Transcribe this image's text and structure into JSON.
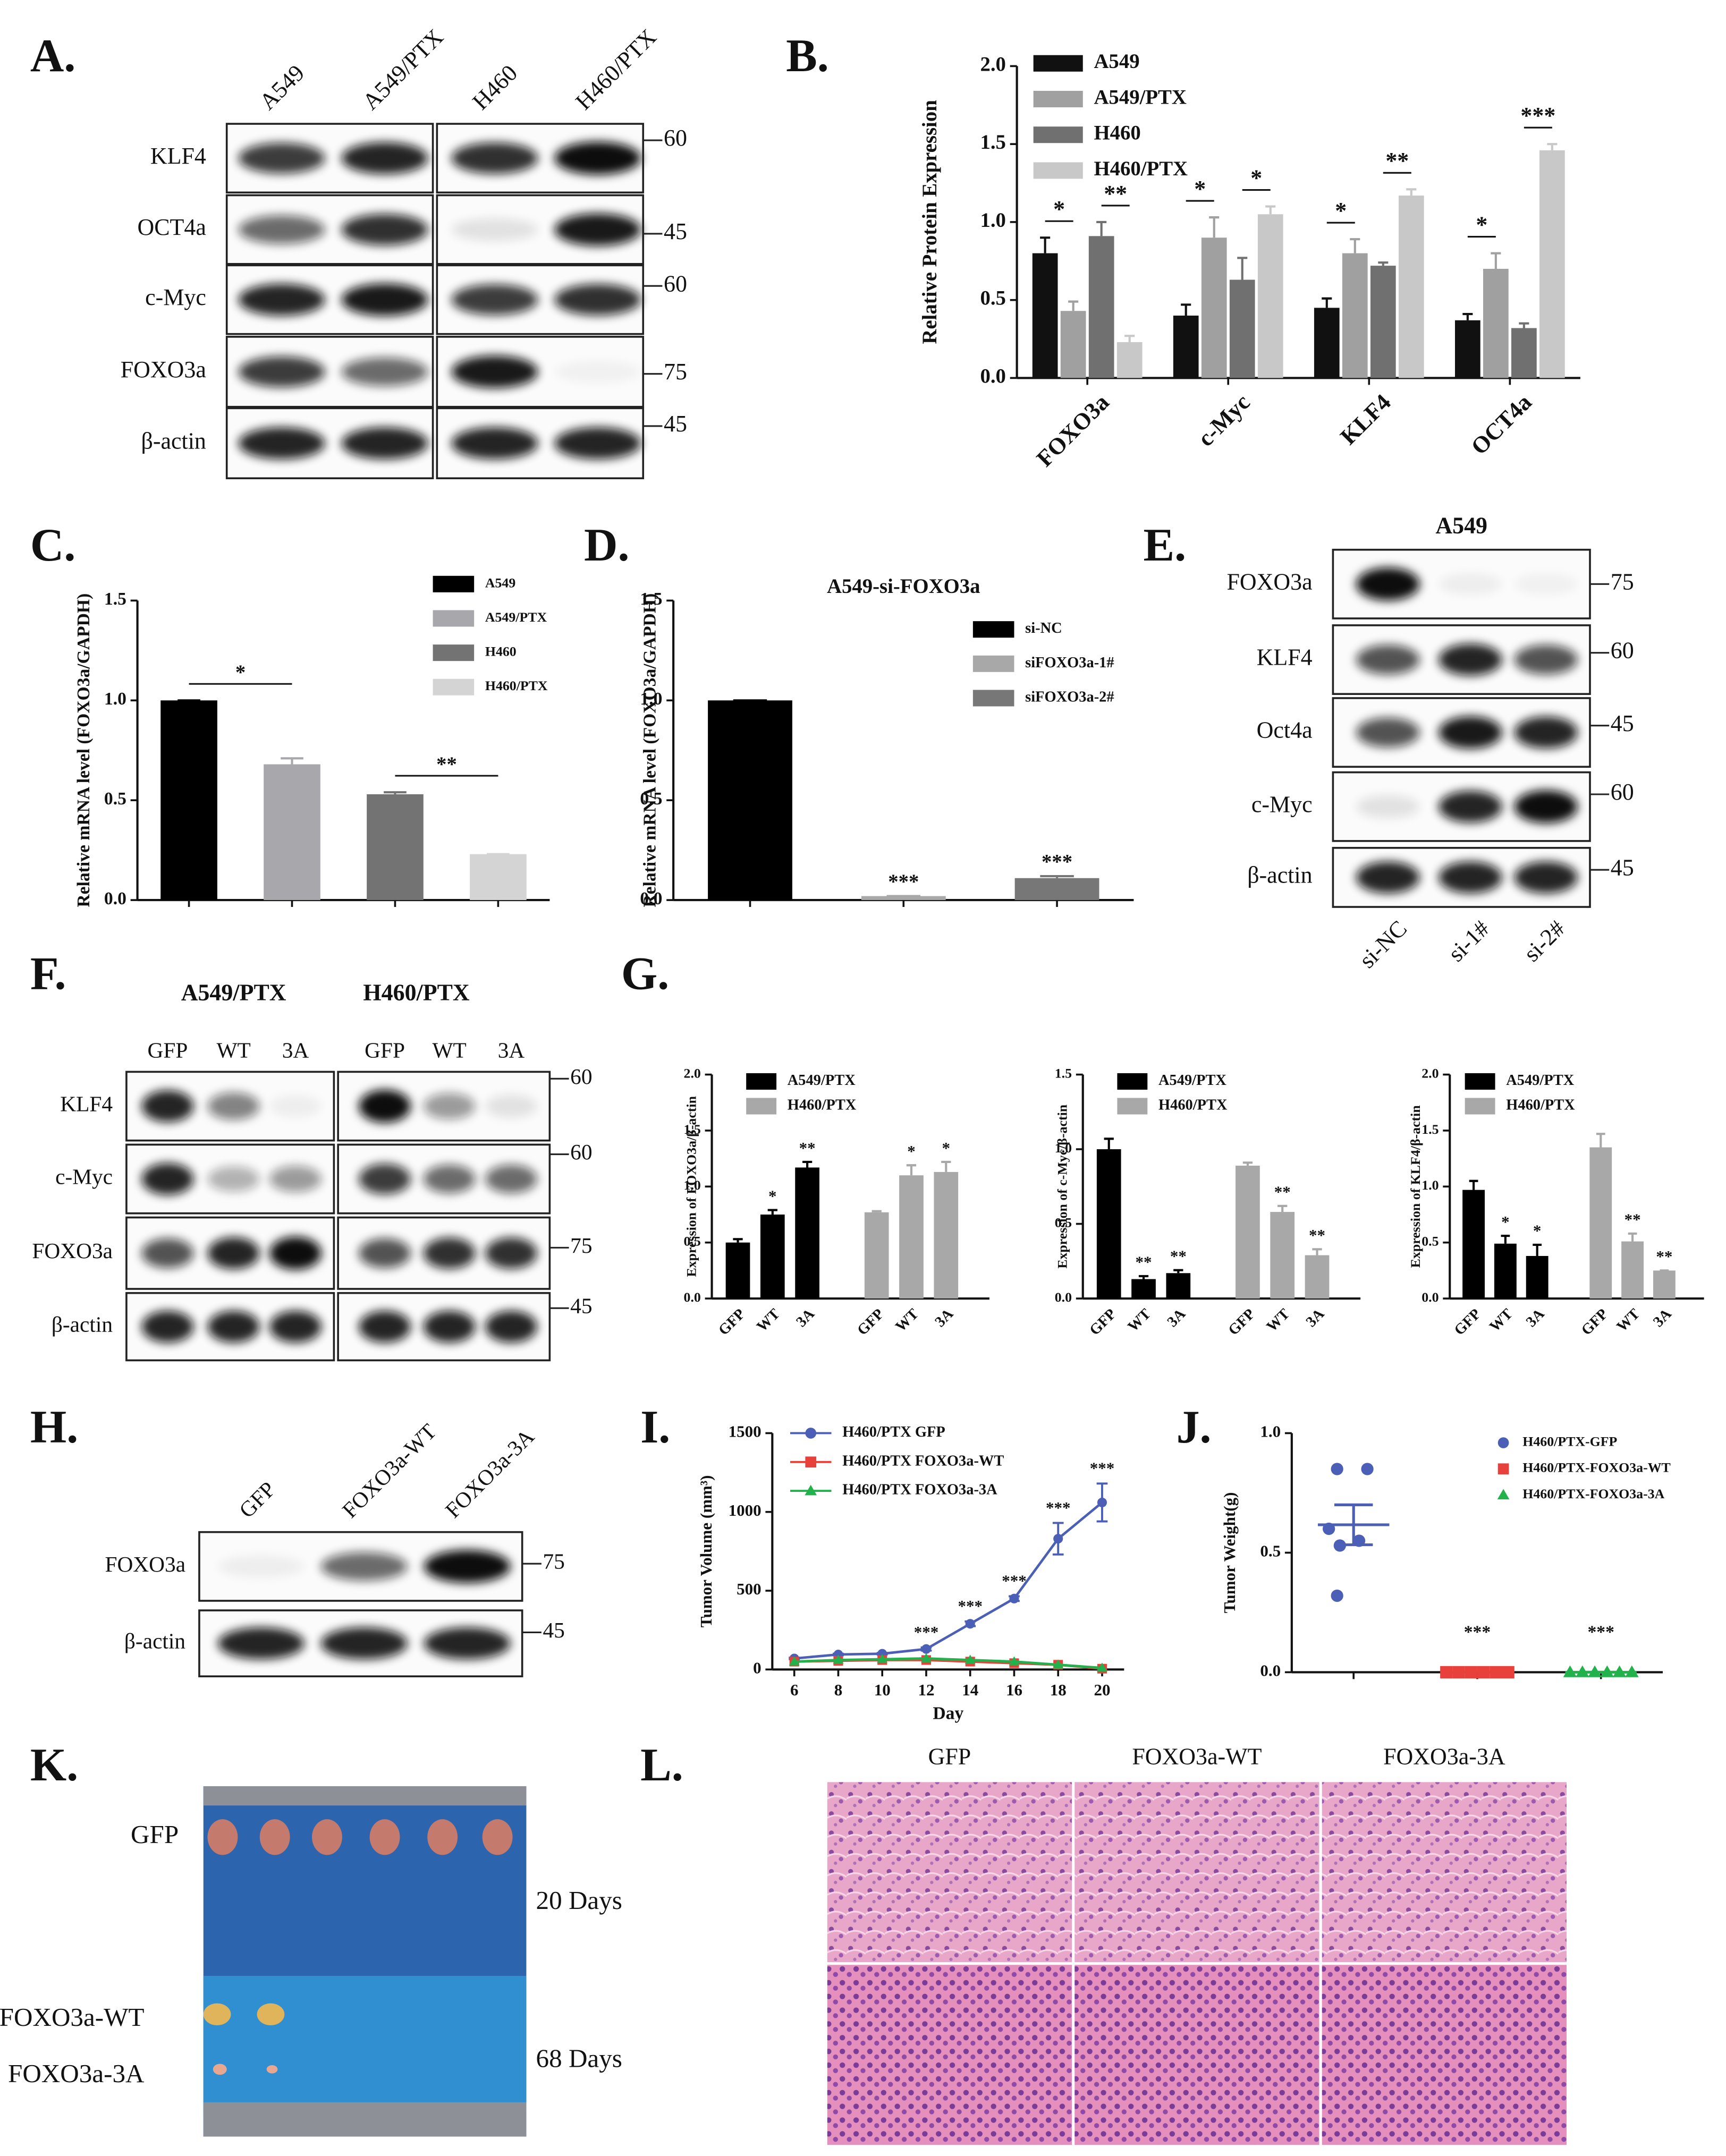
{
  "panel_labels": [
    "A.",
    "B.",
    "C.",
    "D.",
    "E.",
    "F.",
    "G.",
    "H.",
    "I.",
    "J.",
    "K.",
    "L."
  ],
  "blots": {
    "A": {
      "lanes": [
        "A549",
        "A549/PTX",
        "H460",
        "H460/PTX"
      ],
      "rows": [
        "KLF4",
        "OCT4a",
        "c-Myc",
        "FOXO3a",
        "β-actin"
      ],
      "markers": [
        60,
        45,
        60,
        75,
        45
      ]
    },
    "E": {
      "title": "A549",
      "lanes": [
        "si-NC",
        "si-1#",
        "si-2#"
      ],
      "rows": [
        "FOXO3a",
        "KLF4",
        "Oct4a",
        "c-Myc",
        "β-actin"
      ],
      "markers": [
        75,
        60,
        45,
        60,
        45
      ]
    },
    "F": {
      "groups": [
        "A549/PTX",
        "H460/PTX"
      ],
      "lanes": [
        "GFP",
        "WT",
        "3A",
        "GFP",
        "WT",
        "3A"
      ],
      "rows": [
        "KLF4",
        "c-Myc",
        "FOXO3a",
        "β-actin"
      ],
      "markers": [
        60,
        60,
        75,
        45
      ]
    },
    "H": {
      "lanes": [
        "GFP",
        "FOXO3a-WT",
        "FOXO3a-3A"
      ],
      "rows": [
        "FOXO3a",
        "β-actin"
      ],
      "markers": [
        75,
        45
      ]
    }
  },
  "chart_data": [
    {
      "type": "bar",
      "ylabel": "Relative Protein Expression",
      "categories": [
        "FOXO3a",
        "c-Myc",
        "KLF4",
        "OCT4a"
      ],
      "ylim": [
        0,
        2.0
      ],
      "yticks": [
        {
          "value": 0,
          "label": "0.0"
        },
        {
          "value": 0.5,
          "label": "0.5"
        },
        {
          "value": 1,
          "label": "1.0"
        },
        {
          "value": 1.5,
          "label": "1.5"
        },
        {
          "value": 2,
          "label": "2.0"
        }
      ],
      "sig_bracket": true,
      "series": [
        {
          "name": "A549",
          "color": "#111111",
          "values": [
            0.8,
            0.4,
            0.45,
            0.37
          ],
          "errors": [
            0.1,
            0.07,
            0.06,
            0.04
          ]
        },
        {
          "name": "A549/PTX",
          "color": "#a0a0a0",
          "values": [
            0.43,
            0.9,
            0.8,
            0.7
          ],
          "errors": [
            0.06,
            0.13,
            0.09,
            0.1
          ],
          "sig": [
            "*",
            "*",
            "*",
            "*"
          ]
        },
        {
          "name": "H460",
          "color": "#707070",
          "values": [
            0.91,
            0.63,
            0.72,
            0.32
          ],
          "errors": [
            0.09,
            0.14,
            0.02,
            0.03
          ]
        },
        {
          "name": "H460/PTX",
          "color": "#c8c8c8",
          "values": [
            0.23,
            1.05,
            1.17,
            1.46
          ],
          "errors": [
            0.04,
            0.05,
            0.04,
            0.04
          ],
          "sig": [
            "**",
            "*",
            "**",
            "***"
          ]
        }
      ]
    },
    {
      "type": "bar",
      "ylabel": "Relative mRNA level (FOXO3a/GAPDH)",
      "categories": [
        null
      ],
      "ylim": [
        0,
        1.5
      ],
      "yticks": [
        {
          "value": 0,
          "label": "0.0"
        },
        {
          "value": 0.5,
          "label": "0.5"
        },
        {
          "value": 1,
          "label": "1.0"
        },
        {
          "value": 1.5,
          "label": "1.5"
        }
      ],
      "sig_bracket": true,
      "series": [
        {
          "name": "A549",
          "color": "#000000",
          "values": [
            1.0
          ],
          "errors": [
            0
          ]
        },
        {
          "name": "A549/PTX",
          "color": "#a8a8ac",
          "values": [
            0.68
          ],
          "errors": [
            0.03
          ],
          "sig": [
            "*"
          ]
        },
        {
          "name": "H460",
          "color": "#737373",
          "values": [
            0.53
          ],
          "errors": [
            0.01
          ]
        },
        {
          "name": "H460/PTX",
          "color": "#d4d4d4",
          "values": [
            0.23
          ],
          "errors": [
            0
          ],
          "sig": [
            "**"
          ]
        }
      ]
    },
    {
      "type": "bar",
      "title": "A549-si-FOXO3a",
      "ylabel": "Relative mRNA level (FOXO3a/GAPDH)",
      "categories": [
        null
      ],
      "ylim": [
        0,
        1.5
      ],
      "yticks": [
        {
          "value": 0,
          "label": "0.0"
        },
        {
          "value": 0.5,
          "label": "0.5"
        },
        {
          "value": 1,
          "label": "1.0"
        },
        {
          "value": 1.5,
          "label": "1.5"
        }
      ],
      "sig_bracket": false,
      "series": [
        {
          "name": "si-NC",
          "color": "#000000",
          "values": [
            1.0
          ],
          "errors": [
            0
          ]
        },
        {
          "name": "siFOXO3a-1#",
          "color": "#a8a8a8",
          "values": [
            0.02
          ],
          "errors": [
            0
          ],
          "sig": [
            "***"
          ]
        },
        {
          "name": "siFOXO3a-2#",
          "color": "#777777",
          "values": [
            0.11
          ],
          "errors": [
            0.01
          ],
          "sig": [
            "***"
          ]
        }
      ]
    },
    {
      "type": "bar",
      "ylabel": "Expression of FOXO3a/β-actin",
      "categories": [
        "GFP",
        "WT",
        "3A"
      ],
      "group_by": "series",
      "ylim": [
        0,
        2.0
      ],
      "yticks": [
        {
          "value": 0,
          "label": "0.0"
        },
        {
          "value": 0.5,
          "label": "0.5"
        },
        {
          "value": 1,
          "label": "1.0"
        },
        {
          "value": 1.5,
          "label": "1.5"
        },
        {
          "value": 2,
          "label": "2.0"
        }
      ],
      "sig_bracket": false,
      "series": [
        {
          "name": "A549/PTX",
          "color": "#000000",
          "values": [
            0.5,
            0.75,
            1.17
          ],
          "errors": [
            0.03,
            0.04,
            0.05
          ],
          "sig": [
            null,
            "*",
            "**"
          ]
        },
        {
          "name": "H460/PTX",
          "color": "#a8a8a8",
          "values": [
            0.77,
            1.1,
            1.13
          ],
          "errors": [
            0.01,
            0.09,
            0.09
          ],
          "sig": [
            null,
            "*",
            "*"
          ]
        }
      ]
    },
    {
      "type": "bar",
      "ylabel": "Expression of c-Myc/β-actin",
      "categories": [
        "GFP",
        "WT",
        "3A"
      ],
      "group_by": "series",
      "ylim": [
        0,
        1.5
      ],
      "yticks": [
        {
          "value": 0,
          "label": "0.0"
        },
        {
          "value": 0.5,
          "label": "0.5"
        },
        {
          "value": 1,
          "label": "1.0"
        },
        {
          "value": 1.5,
          "label": "1.5"
        }
      ],
      "sig_bracket": false,
      "series": [
        {
          "name": "A549/PTX",
          "color": "#000000",
          "values": [
            1.0,
            0.13,
            0.17
          ],
          "errors": [
            0.07,
            0.02,
            0.02
          ],
          "sig": [
            null,
            "**",
            "**"
          ]
        },
        {
          "name": "H460/PTX",
          "color": "#a8a8a8",
          "values": [
            0.89,
            0.58,
            0.29
          ],
          "errors": [
            0.02,
            0.04,
            0.04
          ],
          "sig": [
            null,
            "**",
            "**"
          ]
        }
      ]
    },
    {
      "type": "bar",
      "ylabel": "Expression of KLF4/β-actin",
      "categories": [
        "GFP",
        "WT",
        "3A"
      ],
      "group_by": "series",
      "ylim": [
        0,
        2.0
      ],
      "yticks": [
        {
          "value": 0,
          "label": "0.0"
        },
        {
          "value": 0.5,
          "label": "0.5"
        },
        {
          "value": 1,
          "label": "1.0"
        },
        {
          "value": 1.5,
          "label": "1.5"
        },
        {
          "value": 2,
          "label": "2.0"
        }
      ],
      "sig_bracket": false,
      "series": [
        {
          "name": "A549/PTX",
          "color": "#000000",
          "values": [
            0.97,
            0.49,
            0.38
          ],
          "errors": [
            0.08,
            0.07,
            0.1
          ],
          "sig": [
            null,
            "*",
            "*"
          ]
        },
        {
          "name": "H460/PTX",
          "color": "#a8a8a8",
          "values": [
            1.35,
            0.51,
            0.25
          ],
          "errors": [
            0.12,
            0.07,
            0
          ],
          "sig": [
            null,
            "**",
            "**"
          ]
        }
      ]
    },
    {
      "type": "line",
      "xlabel": "Day",
      "ylabel": "Tumor Volume (mm³)",
      "x": [
        6,
        8,
        10,
        12,
        14,
        16,
        18,
        20
      ],
      "xlim": [
        5,
        21
      ],
      "xticks": [
        6,
        8,
        10,
        12,
        14,
        16,
        18,
        20
      ],
      "ylim": [
        0,
        1500
      ],
      "yticks": [
        0,
        500,
        1000,
        1500
      ],
      "series": [
        {
          "name": "H460/PTX GFP",
          "color": "#4a5fb5",
          "marker": "circle",
          "values": [
            70,
            95,
            100,
            130,
            290,
            450,
            830,
            1060
          ],
          "errors": [
            5,
            5,
            5,
            10,
            15,
            15,
            100,
            120
          ],
          "sig": [
            null,
            null,
            null,
            "***",
            "***",
            "***",
            "***",
            "***"
          ]
        },
        {
          "name": "H460/PTX FOXO3a-WT",
          "color": "#e8403a",
          "marker": "square",
          "values": [
            50,
            55,
            60,
            60,
            50,
            40,
            30,
            5
          ]
        },
        {
          "name": "H460/PTX FOXO3a-3A",
          "color": "#22b24c",
          "marker": "triangle",
          "values": [
            50,
            60,
            65,
            70,
            60,
            50,
            30,
            10
          ]
        }
      ]
    },
    {
      "type": "scatter",
      "ylabel": "Tumor Weight(g)",
      "ylim": [
        0,
        1.0
      ],
      "yticks": [
        {
          "value": 0,
          "label": "0.0"
        },
        {
          "value": 0.5,
          "label": "0.5"
        },
        {
          "value": 1,
          "label": "1.0"
        }
      ],
      "series": [
        {
          "name": "H460/PTX-GFP",
          "color": "#4a5fb5",
          "marker": "circle",
          "values": [
            0.85,
            0.85,
            0.6,
            0.55,
            0.53,
            0.32
          ]
        },
        {
          "name": "H460/PTX-FOXO3a-WT",
          "color": "#e8403a",
          "marker": "square",
          "values": [
            0,
            0,
            0,
            0,
            0,
            0
          ],
          "sig": "***"
        },
        {
          "name": "H460/PTX-FOXO3a-3A",
          "color": "#22b24c",
          "marker": "triangle",
          "values": [
            0,
            0,
            0,
            0,
            0,
            0
          ],
          "sig": "***"
        }
      ]
    }
  ],
  "tumor_photo": {
    "rows": [
      "GFP",
      "FOXO3a-WT",
      "FOXO3a-3A"
    ],
    "times": [
      "20 Days",
      "68 Days"
    ]
  },
  "histology": {
    "columns": [
      "GFP",
      "FOXO3a-WT",
      "FOXO3a-3A"
    ]
  }
}
